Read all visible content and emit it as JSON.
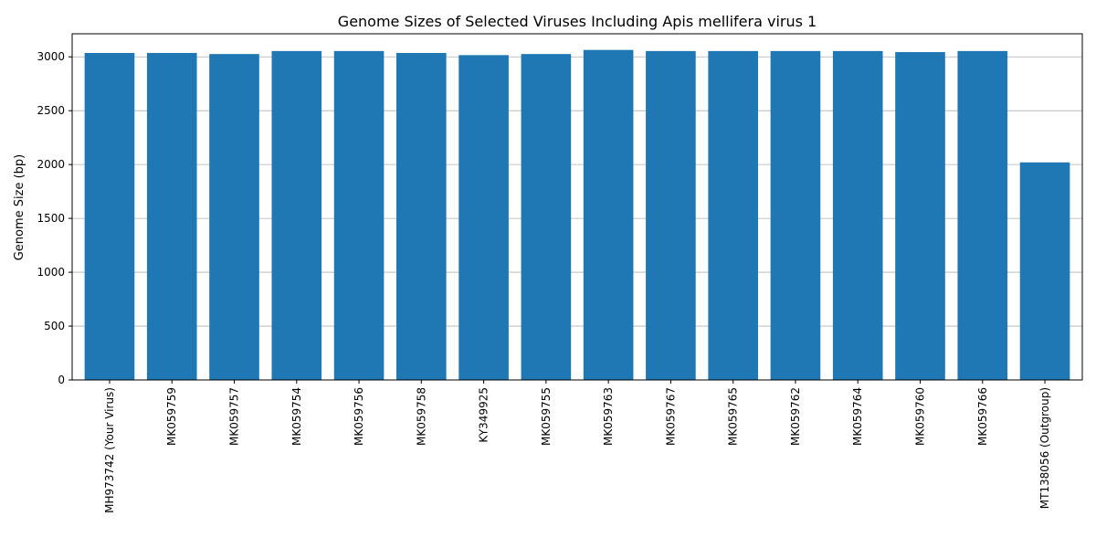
{
  "chart_data": {
    "type": "bar",
    "title": "Genome Sizes of Selected Viruses Including Apis mellifera virus 1",
    "xlabel": "",
    "ylabel": "Genome Size (bp)",
    "categories": [
      "MH973742 (Your Virus)",
      "MK059759",
      "MK059757",
      "MK059754",
      "MK059756",
      "MK059758",
      "KY349925",
      "MK059755",
      "MK059763",
      "MK059767",
      "MK059765",
      "MK059762",
      "MK059764",
      "MK059760",
      "MK059766",
      "MT138056 (Outgroup)"
    ],
    "values": [
      3036,
      3036,
      3026,
      3054,
      3054,
      3036,
      3016,
      3026,
      3064,
      3054,
      3054,
      3054,
      3054,
      3044,
      3054,
      2020
    ],
    "ylim": [
      0,
      3214
    ],
    "yticks": [
      0,
      500,
      1000,
      1500,
      2000,
      2500,
      3000
    ],
    "grid": "y",
    "bar_color": "#1f77b4"
  }
}
